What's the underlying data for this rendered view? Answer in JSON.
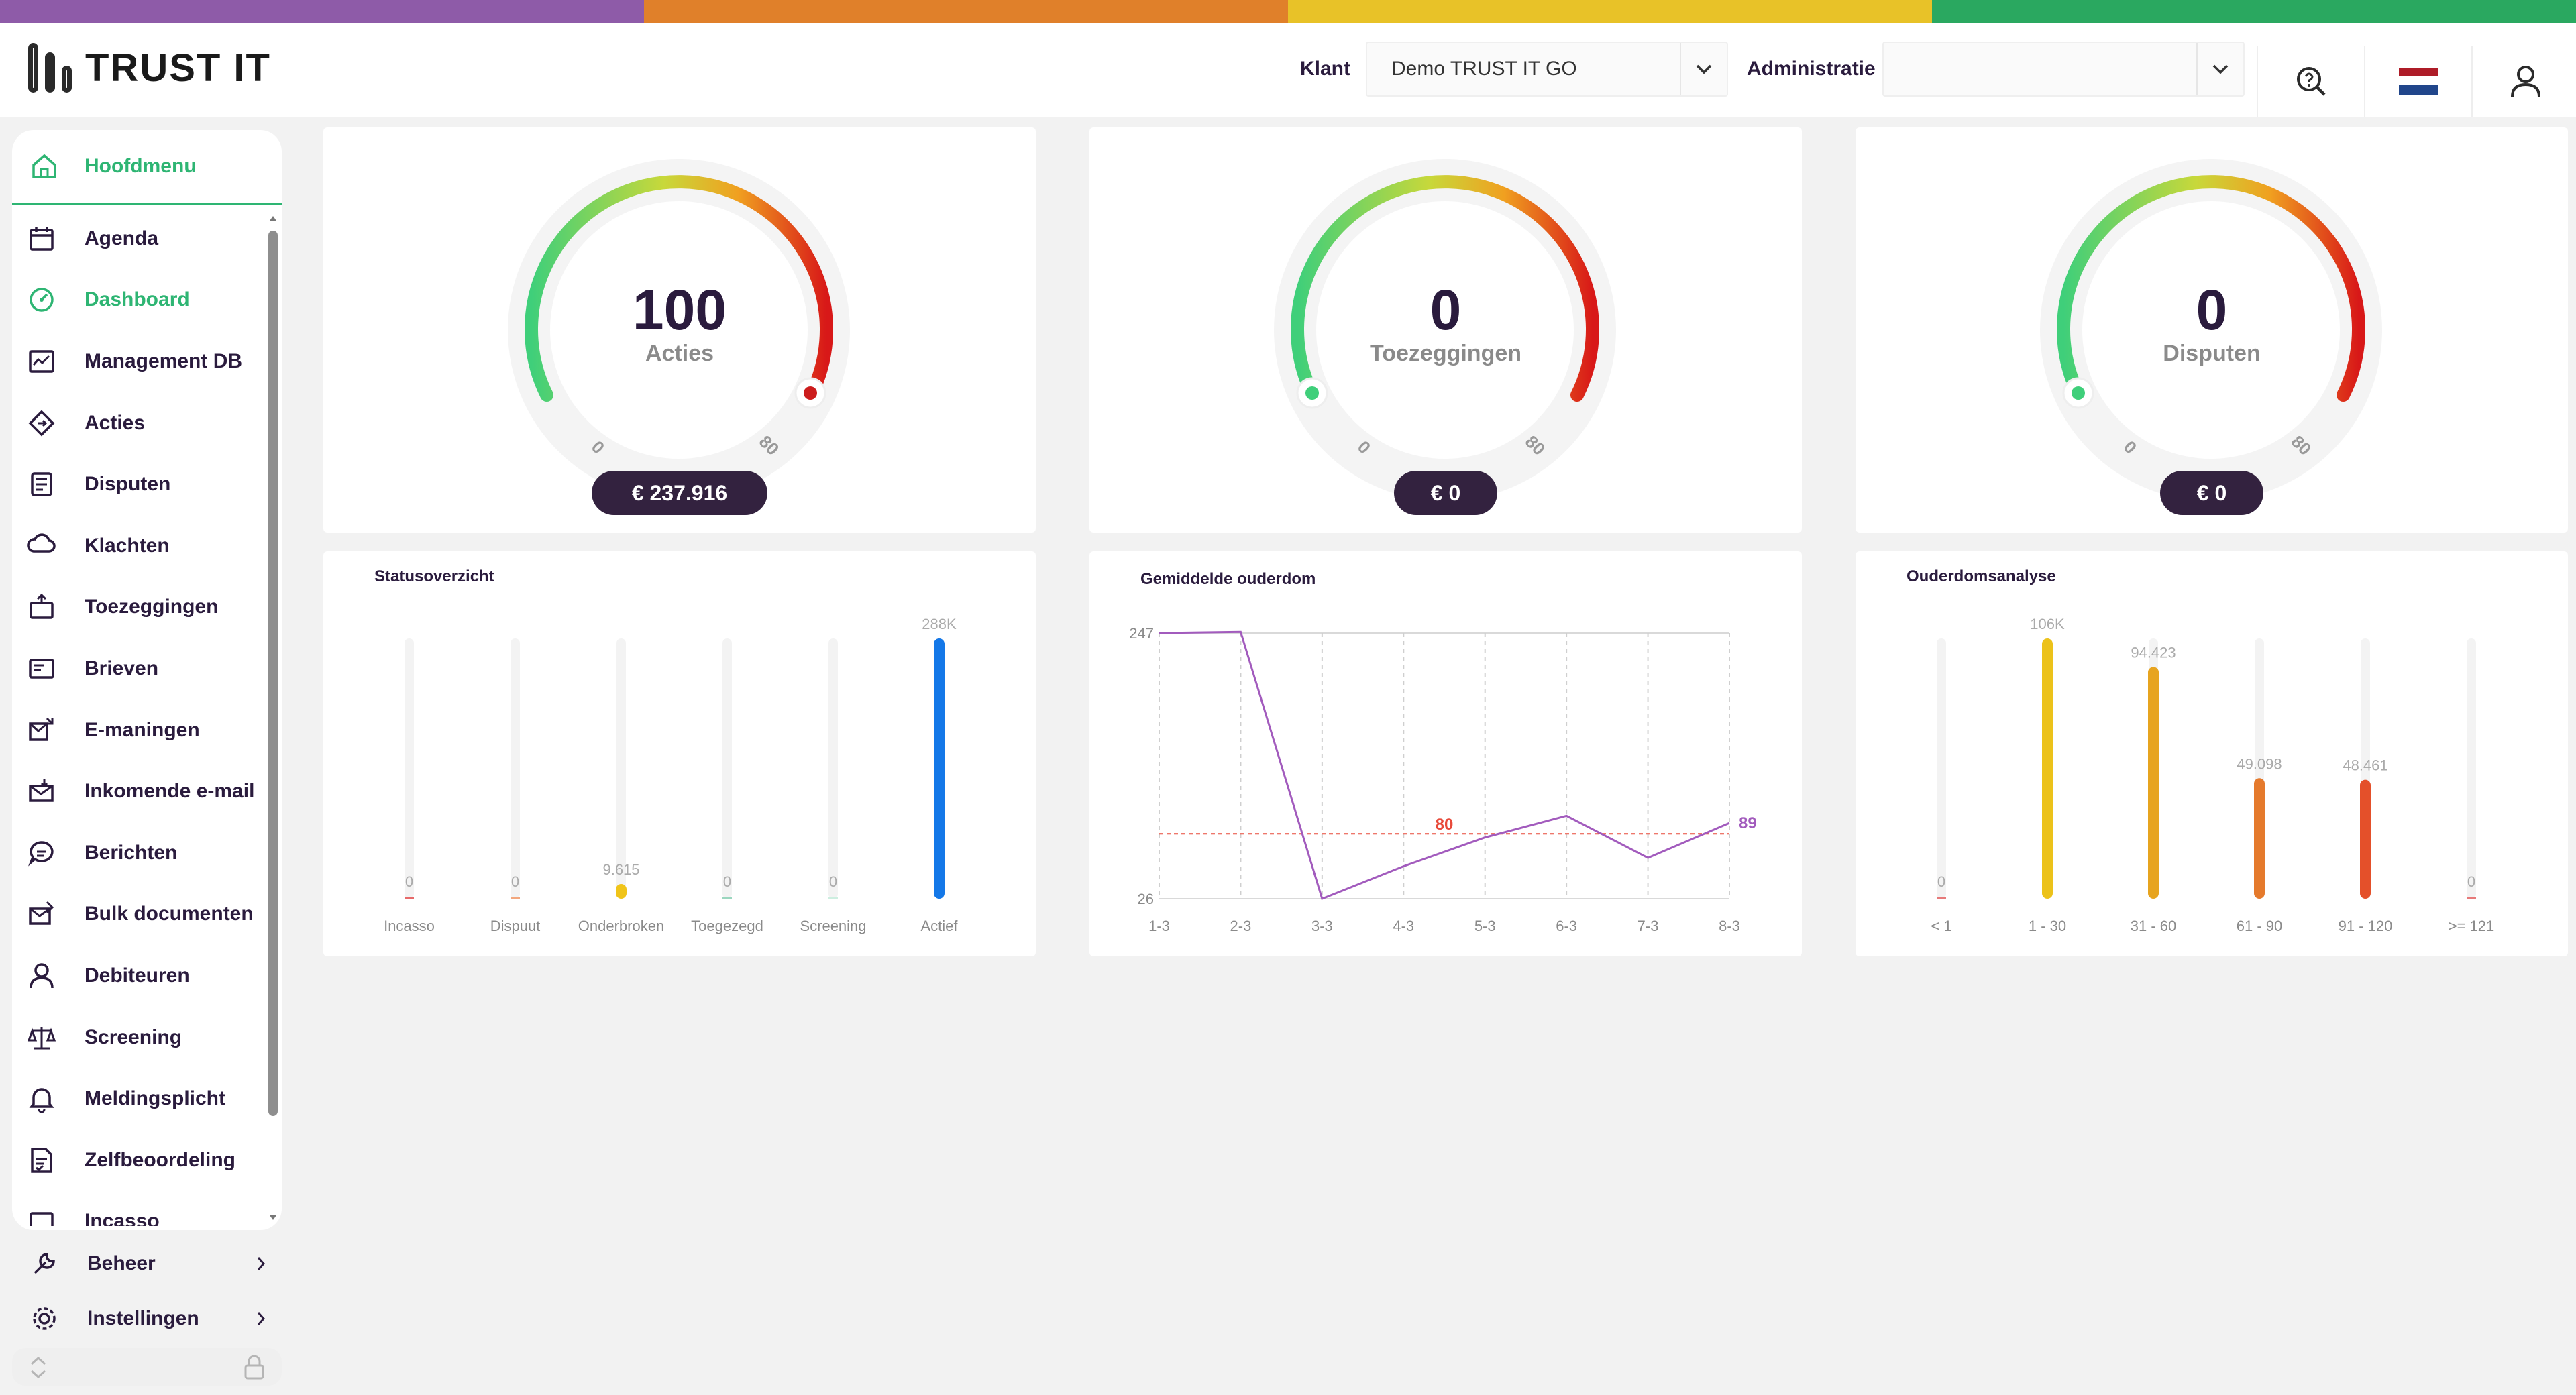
{
  "brand": {
    "name": "TRUST IT",
    "stripe_colors": [
      "#8e5ba8",
      "#e0802a",
      "#e8c228",
      "#2aa860"
    ]
  },
  "header": {
    "klant_label": "Klant",
    "klant_value": "Demo TRUST IT GO",
    "administratie_label": "Administratie",
    "administratie_value": "",
    "icons": [
      "search-help-icon",
      "netherlands-flag-icon",
      "user-icon"
    ]
  },
  "sidebar": {
    "head_label": "Hoofdmenu",
    "items": [
      {
        "label": "Agenda",
        "icon": "calendar-icon"
      },
      {
        "label": "Dashboard",
        "icon": "dashboard-icon",
        "active": true
      },
      {
        "label": "Management DB",
        "icon": "management-icon"
      },
      {
        "label": "Acties",
        "icon": "actions-icon"
      },
      {
        "label": "Disputen",
        "icon": "disputes-icon"
      },
      {
        "label": "Klachten",
        "icon": "complaints-icon"
      },
      {
        "label": "Toezeggingen",
        "icon": "commitments-icon"
      },
      {
        "label": "Brieven",
        "icon": "letters-icon"
      },
      {
        "label": "E-maningen",
        "icon": "email-reminders-icon"
      },
      {
        "label": "Inkomende e-mail",
        "icon": "incoming-mail-icon"
      },
      {
        "label": "Berichten",
        "icon": "messages-icon"
      },
      {
        "label": "Bulk documenten",
        "icon": "bulk-docs-icon"
      },
      {
        "label": "Debiteuren",
        "icon": "debtors-icon"
      },
      {
        "label": "Screening",
        "icon": "screening-icon"
      },
      {
        "label": "Meldingsplicht",
        "icon": "bell-icon"
      },
      {
        "label": "Zelfbeoordeling",
        "icon": "self-assessment-icon"
      },
      {
        "label": "Incasso",
        "icon": "collection-icon"
      }
    ],
    "beheer_label": "Beheer",
    "instellingen_label": "Instellingen"
  },
  "gauges": [
    {
      "value": "100",
      "label": "Acties",
      "amount": "€ 237.916",
      "min": "0",
      "max": "80",
      "level": 1.0
    },
    {
      "value": "0",
      "label": "Toezeggingen",
      "amount": "€ 0",
      "min": "0",
      "max": "80",
      "level": 0.0
    },
    {
      "value": "0",
      "label": "Disputen",
      "amount": "€ 0",
      "min": "0",
      "max": "80",
      "level": 0.0
    }
  ],
  "chart_data": [
    {
      "type": "bar",
      "title": "Statusoverzicht",
      "categories": [
        "Incasso",
        "Dispuut",
        "Onderbroken",
        "Toegezegd",
        "Screening",
        "Actief"
      ],
      "values": [
        0,
        0,
        9615,
        0,
        0,
        288000
      ],
      "value_labels": [
        "0",
        "0",
        "9.615",
        "0",
        "0",
        "288K"
      ],
      "colors": [
        "#e76a6a",
        "#f2a77e",
        "#f0c419",
        "#9bd6bf",
        "#cdeee0",
        "#1478e8"
      ],
      "ylim": [
        0,
        288000
      ]
    },
    {
      "type": "line",
      "title": "Gemiddelde ouderdom",
      "categories": [
        "1-3",
        "2-3",
        "3-3",
        "4-3",
        "5-3",
        "6-3",
        "7-3",
        "8-3"
      ],
      "values": [
        247,
        248,
        26,
        53,
        77,
        95,
        60,
        89
      ],
      "ylim": [
        26,
        247
      ],
      "y_ticks": [
        "247",
        "26"
      ],
      "reference_line": {
        "value": 80,
        "label": "80",
        "color": "#e84a3a"
      },
      "last_label": "89",
      "color": "#a25bbd"
    },
    {
      "type": "bar",
      "title": "Ouderdomsanalyse",
      "categories": [
        "< 1",
        "1 - 30",
        "31 - 60",
        "61 - 90",
        "91 - 120",
        ">= 121"
      ],
      "values": [
        0,
        106000,
        94423,
        49098,
        48461,
        0
      ],
      "value_labels": [
        "0",
        "106K",
        "94.423",
        "49.098",
        "48.461",
        "0"
      ],
      "colors": [
        "#e77a7a",
        "#ecc21a",
        "#e7a41f",
        "#e57a2c",
        "#e4502a",
        "#e77a7a"
      ],
      "ylim": [
        0,
        106000
      ]
    }
  ]
}
